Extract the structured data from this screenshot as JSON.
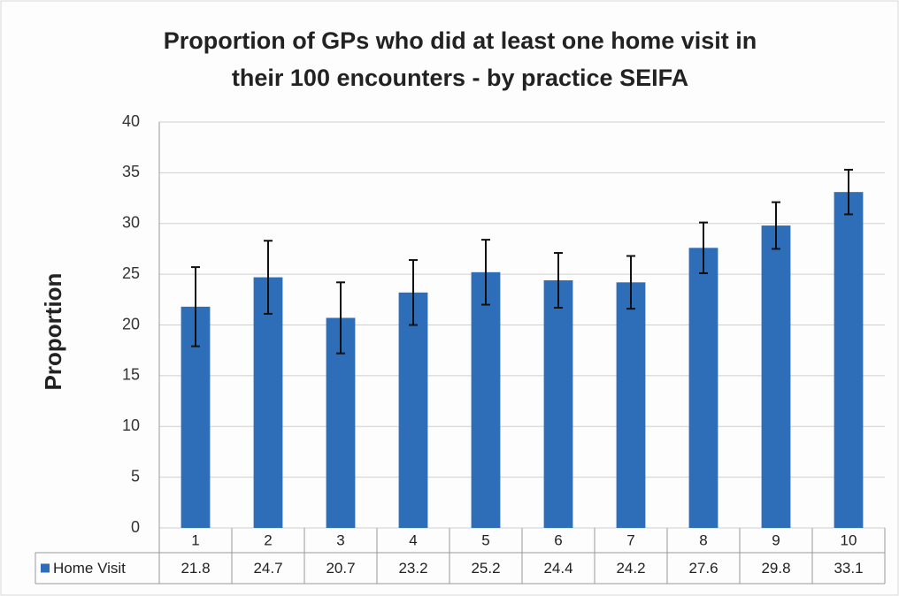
{
  "chart_data": {
    "type": "bar",
    "title": [
      "Proportion of GPs who did at least one home visit in",
      "their 100 encounters - by practice SEIFA"
    ],
    "y_label": "Proportion",
    "categories": [
      "1",
      "2",
      "3",
      "4",
      "5",
      "6",
      "7",
      "8",
      "9",
      "10"
    ],
    "series": [
      {
        "name": "Home Visit",
        "color": "#2e6db7",
        "values": [
          21.8,
          24.7,
          20.7,
          23.2,
          25.2,
          24.4,
          24.2,
          27.6,
          29.8,
          33.1
        ],
        "errors": [
          3.9,
          3.6,
          3.5,
          3.2,
          3.2,
          2.7,
          2.6,
          2.5,
          2.3,
          2.2
        ]
      }
    ],
    "ylim": [
      0,
      40
    ],
    "yticks": [
      0,
      5,
      10,
      15,
      20,
      25,
      30,
      35,
      40
    ],
    "grid": true,
    "data_table": true
  }
}
